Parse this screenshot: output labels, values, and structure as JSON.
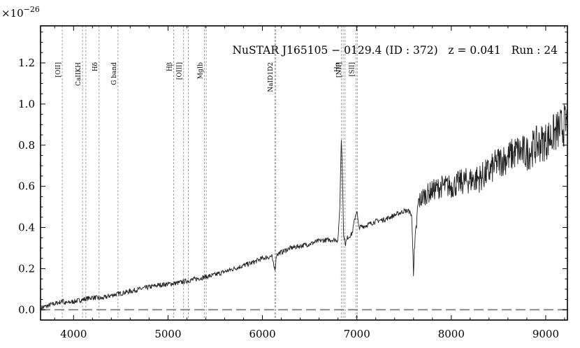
{
  "chart_data": {
    "type": "line",
    "title": "NuSTAR J165105 − 0129.4 (ID : 372)   z = 0.041   Run : 24",
    "xlabel": "",
    "ylabel": "",
    "y_multiplier": "×10",
    "y_exponent": "−26",
    "xlim": [
      3650,
      9230
    ],
    "ylim": [
      -0.05,
      1.38
    ],
    "x_ticks": [
      4000,
      5000,
      6000,
      7000,
      8000,
      9000
    ],
    "x_tick_labels": [
      "4000",
      "5000",
      "6000",
      "7000",
      "8000",
      "9000"
    ],
    "y_ticks": [
      0.0,
      0.2,
      0.4,
      0.6,
      0.8,
      1.0,
      1.2
    ],
    "y_tick_labels": [
      "0.0",
      "0.2",
      "0.4",
      "0.6",
      "0.8",
      "1.0",
      "1.2"
    ],
    "grid": false,
    "baseline": {
      "y": 0.0,
      "style": "dashed",
      "color": "#8a8a8a"
    },
    "emission_lines": [
      {
        "label": "[OII]",
        "x": [
          3880
        ]
      },
      {
        "label": "CaIIKH",
        "x": [
          4095,
          4130
        ]
      },
      {
        "label": "Hδ",
        "x": [
          4270
        ]
      },
      {
        "label": "G band",
        "x": [
          4470
        ]
      },
      {
        "label": "Hβ",
        "x": [
          5060
        ]
      },
      {
        "label": "[OIII]",
        "x": [
          5165,
          5215
        ]
      },
      {
        "label": "MgIb",
        "x": [
          5385,
          5405
        ]
      },
      {
        "label": "NaID1D2",
        "x": [
          6130,
          6140
        ]
      },
      {
        "label": "Hα",
        "x": [
          6835
        ]
      },
      {
        "label": "[NII]",
        "x": [
          6855,
          6875
        ]
      },
      {
        "label": "[SII]",
        "x": [
          6990,
          7005
        ]
      }
    ],
    "series": [
      {
        "color": "#222222",
        "x": [
          3660,
          3800,
          3880,
          3890,
          3900,
          4000,
          4100,
          4200,
          4300,
          4400,
          4500,
          4600,
          4700,
          4800,
          4900,
          5000,
          5100,
          5200,
          5300,
          5400,
          5500,
          5600,
          5700,
          5800,
          5900,
          6000,
          6100,
          6120,
          6135,
          6150,
          6200,
          6300,
          6400,
          6500,
          6600,
          6700,
          6800,
          6820,
          6835,
          6845,
          6860,
          6880,
          6900,
          6950,
          6985,
          7000,
          7020,
          7100,
          7200,
          7300,
          7400,
          7500,
          7550,
          7580,
          7600,
          7620,
          7650,
          7700,
          7800,
          7900,
          8000,
          8100,
          8200,
          8300,
          8400,
          8500,
          8600,
          8700,
          8800,
          8900,
          9000,
          9100,
          9230
        ],
        "y": [
          0.01,
          0.03,
          0.04,
          0.06,
          0.03,
          0.04,
          0.05,
          0.06,
          0.055,
          0.07,
          0.08,
          0.09,
          0.1,
          0.11,
          0.12,
          0.125,
          0.13,
          0.14,
          0.15,
          0.16,
          0.17,
          0.185,
          0.2,
          0.215,
          0.23,
          0.25,
          0.26,
          0.21,
          0.2,
          0.27,
          0.28,
          0.3,
          0.31,
          0.32,
          0.335,
          0.34,
          0.34,
          0.5,
          0.84,
          0.7,
          0.36,
          0.32,
          0.35,
          0.37,
          0.46,
          0.48,
          0.4,
          0.41,
          0.43,
          0.44,
          0.46,
          0.48,
          0.48,
          0.46,
          0.2,
          0.34,
          0.52,
          0.55,
          0.58,
          0.6,
          0.6,
          0.62,
          0.63,
          0.64,
          0.67,
          0.72,
          0.74,
          0.77,
          0.76,
          0.8,
          0.82,
          0.86,
          0.91
        ]
      }
    ]
  }
}
